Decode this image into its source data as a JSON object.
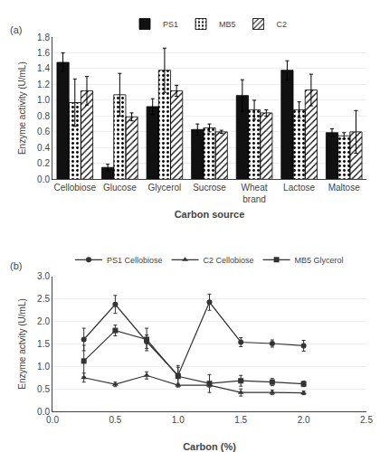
{
  "chart_data": [
    {
      "type": "bar",
      "xlabel": "Carbon source",
      "ylabel": "Enzyme activity (U/mL)",
      "annotations": [
        "(a)"
      ],
      "categories": [
        "Cellobiose",
        "Glucose",
        "Glycerol",
        "Sucrose",
        "Wheat\nbrand",
        "Lactose",
        "Maltose"
      ],
      "series": [
        {
          "name": "PS1",
          "color": "#111111",
          "values": [
            1.48,
            0.15,
            0.92,
            0.63,
            1.06,
            1.38,
            0.59
          ],
          "errors": [
            0.12,
            0.04,
            0.1,
            0.07,
            0.2,
            0.12,
            0.05
          ]
        },
        {
          "name": "MB5",
          "color": "#bbbbbb",
          "values": [
            0.97,
            1.07,
            1.38,
            0.65,
            0.88,
            0.88,
            0.55
          ],
          "errors": [
            0.3,
            0.27,
            0.28,
            0.05,
            0.12,
            0.1,
            0.04
          ]
        },
        {
          "name": "C2",
          "color": "#eeeeee",
          "values": [
            1.12,
            0.79,
            1.12,
            0.6,
            0.84,
            1.13,
            0.6
          ],
          "errors": [
            0.18,
            0.05,
            0.07,
            0.02,
            0.04,
            0.2,
            0.27
          ]
        }
      ],
      "ylim": [
        0,
        1.8
      ],
      "yticks": [
        {
          "value": 0,
          "label": "0.0"
        },
        {
          "value": 0.2,
          "label": "0.2"
        },
        {
          "value": 0.4,
          "label": "0.4"
        },
        {
          "value": 0.6,
          "label": "0.6"
        },
        {
          "value": 0.8,
          "label": "0.8"
        },
        {
          "value": 1.0,
          "label": "1.0"
        },
        {
          "value": 1.2,
          "label": "1.2"
        },
        {
          "value": 1.4,
          "label": "1.4"
        },
        {
          "value": 1.6,
          "label": "1.6"
        },
        {
          "value": 1.8,
          "label": "1.8"
        }
      ],
      "grid": "y"
    },
    {
      "type": "line",
      "xlabel": "Carbon (%)",
      "ylabel": "Enzyme actvity (U/mL)",
      "annotations": [
        "(b)"
      ],
      "x": [
        0.25,
        0.5,
        0.75,
        1.0,
        1.25,
        1.5,
        1.75,
        2.0
      ],
      "series": [
        {
          "name": "PS1 Cellobiose",
          "color": "#333333",
          "marker": "circle",
          "values": [
            1.6,
            2.38,
            1.55,
            0.8,
            2.43,
            1.54,
            1.51,
            1.46
          ],
          "errors": [
            0.25,
            0.2,
            0.15,
            0.22,
            0.18,
            0.1,
            0.08,
            0.12
          ]
        },
        {
          "name": "C2 Cellobiose",
          "color": "#333333",
          "marker": "triangle-up",
          "values": [
            0.75,
            0.6,
            0.8,
            0.58,
            0.58,
            0.42,
            0.42,
            0.41
          ],
          "errors": [
            0.1,
            0.05,
            0.08,
            0.04,
            0.04,
            0.08,
            0.05,
            0.04
          ]
        },
        {
          "name": "MB5 Glycerol",
          "color": "#333333",
          "marker": "square",
          "values": [
            1.12,
            1.8,
            1.6,
            0.78,
            0.62,
            0.68,
            0.65,
            0.61
          ],
          "errors": [
            0.35,
            0.12,
            0.25,
            0.2,
            0.2,
            0.12,
            0.08,
            0.06
          ]
        }
      ],
      "xlim": [
        0,
        2.5
      ],
      "xticks": [
        {
          "value": 0,
          "label": "0.0"
        },
        {
          "value": 0.5,
          "label": "0.5"
        },
        {
          "value": 1.0,
          "label": "1.0"
        },
        {
          "value": 1.5,
          "label": "1.5"
        },
        {
          "value": 2.0,
          "label": "2.0"
        },
        {
          "value": 2.5,
          "label": "2.5"
        }
      ],
      "ylim": [
        0,
        3.0
      ],
      "yticks": [
        {
          "value": 0,
          "label": "0.0"
        },
        {
          "value": 0.5,
          "label": "0.5"
        },
        {
          "value": 1.0,
          "label": "1.0"
        },
        {
          "value": 1.5,
          "label": "1.5"
        },
        {
          "value": 2.0,
          "label": "2.0"
        },
        {
          "value": 2.5,
          "label": "2.5"
        },
        {
          "value": 3.0,
          "label": "3.0"
        }
      ],
      "grid": "y"
    }
  ]
}
